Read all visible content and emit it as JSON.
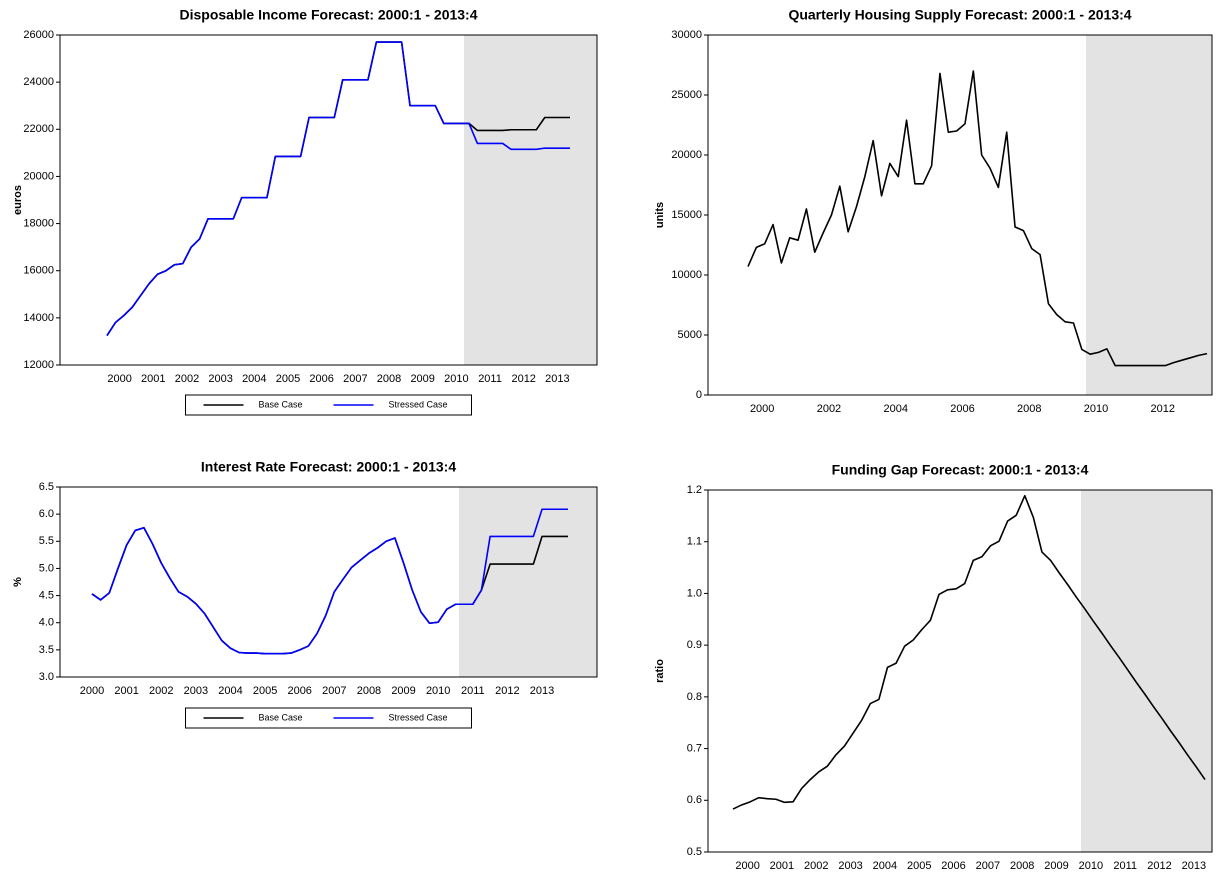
{
  "chart_data": [
    {
      "type": "line",
      "title": "Disposable Income Forecast: 2000:1 - 2013:4",
      "y_label": "euros",
      "categories": [
        "2000",
        null,
        null,
        null,
        "2001",
        null,
        null,
        null,
        "2002",
        null,
        null,
        null,
        "2003",
        null,
        null,
        null,
        "2004",
        null,
        null,
        null,
        "2005",
        null,
        null,
        null,
        "2006",
        null,
        null,
        null,
        "2007",
        null,
        null,
        null,
        "2008",
        null,
        null,
        null,
        "2009",
        null,
        null,
        null,
        "2010",
        null,
        null,
        null,
        "2011",
        null,
        null,
        null,
        "2012",
        null,
        null,
        null,
        "2013",
        null,
        null,
        null
      ],
      "series": [
        {
          "name": "Base Case",
          "color": "#000000",
          "values": [
            13250,
            13800,
            14100,
            14450,
            14950,
            15450,
            15850,
            16000,
            16250,
            16300,
            17000,
            17350,
            18200,
            18200,
            18200,
            18200,
            19100,
            19100,
            19100,
            19100,
            20850,
            20850,
            20850,
            20850,
            22500,
            22500,
            22500,
            22500,
            24100,
            24100,
            24100,
            24100,
            25700,
            25700,
            25700,
            25700,
            23000,
            23000,
            23000,
            23000,
            22250,
            22250,
            22250,
            22250,
            21950,
            21950,
            21950,
            21950,
            21980,
            21980,
            21980,
            21980,
            22500,
            22500,
            22500,
            22500
          ]
        },
        {
          "name": "Stressed Case",
          "color": "#0000ff",
          "values": [
            13250,
            13800,
            14100,
            14450,
            14950,
            15450,
            15850,
            16000,
            16250,
            16300,
            17000,
            17350,
            18200,
            18200,
            18200,
            18200,
            19100,
            19100,
            19100,
            19100,
            20850,
            20850,
            20850,
            20850,
            22500,
            22500,
            22500,
            22500,
            24100,
            24100,
            24100,
            24100,
            25700,
            25700,
            25700,
            25700,
            23000,
            23000,
            23000,
            23000,
            22250,
            22250,
            22250,
            22250,
            21400,
            21400,
            21400,
            21400,
            21150,
            21150,
            21150,
            21150,
            21200,
            21200,
            21200,
            21200
          ]
        }
      ],
      "ylim": [
        12000,
        26000
      ],
      "yticks": [
        12000,
        14000,
        16000,
        18000,
        20000,
        22000,
        24000,
        26000
      ]
    },
    {
      "type": "line",
      "title": "Quarterly Housing Supply Forecast: 2000:1 - 2013:4",
      "y_label": "units",
      "categories": [
        "2000",
        null,
        null,
        null,
        null,
        null,
        null,
        null,
        "2002",
        null,
        null,
        null,
        null,
        null,
        null,
        null,
        "2004",
        null,
        null,
        null,
        null,
        null,
        null,
        null,
        "2006",
        null,
        null,
        null,
        null,
        null,
        null,
        null,
        "2008",
        null,
        null,
        null,
        null,
        null,
        null,
        null,
        "2010",
        null,
        null,
        null,
        null,
        null,
        null,
        null,
        "2012",
        null,
        null,
        null,
        null,
        null,
        null,
        null
      ],
      "values": [
        10700,
        12300,
        12600,
        14200,
        11000,
        13100,
        12900,
        15500,
        11900,
        13500,
        15000,
        17400,
        13600,
        15700,
        18200,
        21200,
        16600,
        19300,
        18200,
        22900,
        17600,
        17600,
        19100,
        26800,
        21900,
        22000,
        22600,
        27000,
        20000,
        18900,
        17300,
        21900,
        14000,
        13700,
        12200,
        11700,
        7600,
        6700,
        6100,
        6000,
        3800,
        3400,
        3550,
        3850,
        2450,
        2450,
        2450,
        2450,
        2450,
        2450,
        2450,
        2700,
        2900,
        3100,
        3300,
        3450
      ],
      "color": "#000000",
      "ylim": [
        0,
        30000
      ],
      "yticks": [
        0,
        5000,
        10000,
        15000,
        20000,
        25000,
        30000
      ]
    },
    {
      "type": "line",
      "title": "Interest Rate Forecast: 2000:1 - 2013:4",
      "y_label": "%",
      "categories": [
        "2000",
        null,
        null,
        null,
        "2001",
        null,
        null,
        null,
        "2002",
        null,
        null,
        null,
        "2003",
        null,
        null,
        null,
        "2004",
        null,
        null,
        null,
        "2005",
        null,
        null,
        null,
        "2006",
        null,
        null,
        null,
        "2007",
        null,
        null,
        null,
        "2008",
        null,
        null,
        null,
        "2009",
        null,
        null,
        null,
        "2010",
        null,
        null,
        null,
        "2011",
        null,
        null,
        null,
        "2012",
        null,
        null,
        null,
        "2013",
        null,
        null,
        null
      ],
      "series": [
        {
          "name": "Base Case",
          "color": "#000000",
          "values": [
            4.53,
            4.42,
            4.55,
            5.0,
            5.43,
            5.7,
            5.75,
            5.45,
            5.1,
            4.82,
            4.57,
            4.48,
            4.35,
            4.17,
            3.92,
            3.67,
            3.53,
            3.45,
            3.44,
            3.44,
            3.43,
            3.43,
            3.43,
            3.44,
            3.5,
            3.57,
            3.8,
            4.13,
            4.57,
            4.8,
            5.02,
            5.15,
            5.28,
            5.38,
            5.5,
            5.56,
            5.1,
            4.6,
            4.2,
            3.99,
            4.01,
            4.25,
            4.34,
            4.34,
            4.34,
            4.6,
            5.08,
            5.08,
            5.08,
            5.08,
            5.08,
            5.08,
            5.59,
            5.59,
            5.59,
            5.59
          ]
        },
        {
          "name": "Stressed Case",
          "color": "#0000ff",
          "values": [
            4.53,
            4.42,
            4.55,
            5.0,
            5.43,
            5.7,
            5.75,
            5.45,
            5.1,
            4.82,
            4.57,
            4.48,
            4.35,
            4.17,
            3.92,
            3.67,
            3.53,
            3.45,
            3.44,
            3.44,
            3.43,
            3.43,
            3.43,
            3.44,
            3.5,
            3.57,
            3.8,
            4.13,
            4.57,
            4.8,
            5.02,
            5.15,
            5.28,
            5.38,
            5.5,
            5.56,
            5.1,
            4.6,
            4.2,
            3.99,
            4.01,
            4.25,
            4.34,
            4.34,
            4.34,
            4.6,
            5.59,
            5.59,
            5.59,
            5.59,
            5.59,
            5.59,
            6.09,
            6.09,
            6.09,
            6.09
          ]
        }
      ],
      "ylim": [
        3,
        6.5
      ],
      "yticks": [
        {
          "value": 3,
          "label": "3.0"
        },
        3.5,
        {
          "value": 4,
          "label": "4.0"
        },
        4.5,
        {
          "value": 5,
          "label": "5.0"
        },
        5.5,
        {
          "value": 6,
          "label": "6.0"
        },
        6.5
      ]
    },
    {
      "type": "line",
      "title": "Funding Gap Forecast: 2000:1 - 2013:4",
      "y_label": "ratio",
      "categories": [
        "2000",
        null,
        null,
        null,
        "2001",
        null,
        null,
        null,
        "2002",
        null,
        null,
        null,
        "2003",
        null,
        null,
        null,
        "2004",
        null,
        null,
        null,
        "2005",
        null,
        null,
        null,
        "2006",
        null,
        null,
        null,
        "2007",
        null,
        null,
        null,
        "2008",
        null,
        null,
        null,
        "2009",
        null,
        null,
        null,
        "2010",
        null,
        null,
        null,
        "2011",
        null,
        null,
        null,
        "2012",
        null,
        null,
        null,
        "2013",
        null,
        null,
        null
      ],
      "values": [
        0.583,
        0.591,
        0.597,
        0.605,
        0.603,
        0.602,
        0.596,
        0.597,
        0.623,
        0.64,
        0.655,
        0.666,
        0.688,
        0.705,
        0.73,
        0.755,
        0.787,
        0.795,
        0.857,
        0.865,
        0.898,
        0.91,
        0.93,
        0.948,
        0.998,
        1.007,
        1.009,
        1.019,
        1.064,
        1.071,
        1.092,
        1.101,
        1.14,
        1.151,
        1.189,
        1.147,
        1.08,
        1.064,
        1.04,
        1.017,
        0.993,
        0.97,
        0.946,
        0.923,
        0.899,
        0.876,
        0.852,
        0.828,
        0.805,
        0.781,
        0.758,
        0.734,
        0.711,
        0.687,
        0.664,
        0.64
      ],
      "color": "#000000",
      "ylim": [
        0.5,
        1.2
      ],
      "yticks": [
        0.5,
        0.6,
        0.7,
        0.8,
        0.9,
        {
          "value": 1,
          "label": "1.0"
        },
        1.1,
        1.2
      ]
    }
  ]
}
